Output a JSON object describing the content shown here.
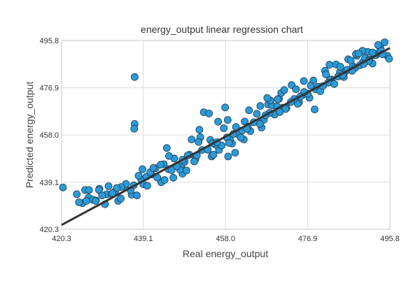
{
  "chart_data": {
    "type": "scatter",
    "title": "energy_output linear regression chart",
    "xlabel": "Real energy_output",
    "ylabel": "Predicted energy_output",
    "xlim": [
      420.3,
      495.8
    ],
    "ylim": [
      420.3,
      495.8
    ],
    "x_ticks": [
      "420.3",
      "439.1",
      "458.0",
      "476.9",
      "495.8"
    ],
    "y_ticks": [
      "420.3",
      "439.1",
      "458.0",
      "476.9",
      "495.8"
    ],
    "grid": true,
    "regression_line": {
      "x": [
        420.3,
        495.8
      ],
      "y": [
        422.0,
        492.8
      ]
    },
    "colors": {
      "marker_fill": "#2b9bd8",
      "marker_edge": "#1f3a52",
      "line": "#333333"
    },
    "series": [
      {
        "points_note_excluded": true,
        "x": [
          420.6,
          425.7,
          437.1,
          437.1,
          437.0,
          438.6,
          438.9,
          431.1,
          426.5,
          426.6,
          428.2,
          429.0,
          432.6,
          430.3,
          433.3,
          434.8,
          436.4,
          441.0,
          443.2,
          444.9,
          446.0,
          447.9,
          448.1,
          449.7,
          451.1,
          452.2,
          454.5,
          454.8,
          456.5,
          457.6,
          458.5,
          459.5,
          460.9,
          462.4,
          463.7,
          465.2,
          466.3,
          467.8,
          469.3,
          470.3,
          472.0,
          473.2,
          474.9,
          475.7,
          477.3,
          478.2,
          479.9,
          480.9,
          482.4,
          483.4,
          484.7,
          486.2,
          487.3,
          488.2,
          489.6,
          490.7,
          491.8,
          492.6,
          493.6,
          494.6,
          495.2,
          495.6,
          453.0,
          454.2,
          462.2,
          460.4,
          468.7,
          470.0,
          476.9,
          484.3,
          490.1,
          446.2,
          439.1,
          444.0,
          447.5,
          450.8,
          452.6,
          455.7,
          457.1,
          459.0,
          463.1,
          466.8,
          471.2,
          474.6,
          478.7,
          482.0,
          485.6,
          487.8,
          491.1,
          492.9,
          489.5,
          486.8,
          484.4,
          481.1,
          477.6,
          475.2,
          471.8,
          468.1,
          465.6,
          461.8,
          458.3,
          455.0,
          451.4,
          448.6,
          445.6,
          442.3,
          440.0,
          436.2,
          433.9,
          430.7,
          427.5,
          425.1,
          423.8,
          424.3,
          428.9,
          431.8,
          435.1,
          438.0,
          441.9,
          443.8,
          449.3,
          453.9,
          456.0,
          459.8,
          462.9,
          464.5,
          467.2,
          469.9,
          473.8,
          476.1,
          479.3,
          481.6,
          483.9,
          486.0,
          488.9,
          490.9,
          492.3,
          493.8,
          478.5,
          470.8,
          460.2,
          457.9,
          449.0,
          444.5,
          439.8,
          434.0,
          429.6,
          426.0,
          456.3,
          463.4,
          473.0,
          481.9,
          487.1,
          440.7,
          450.2,
          458.8,
          468.3,
          476.0,
          483.0,
          489.8,
          445.0,
          452.0,
          461.5,
          470.5,
          479.8,
          488.0,
          458.6,
          465.9,
          448.1,
          443.1,
          436.9,
          432.0,
          428.1,
          467.6,
          474.2,
          480.4,
          485.2,
          491.8,
          494.1,
          493.1,
          488.6,
          484.9,
          471.5,
          466.0,
          455.2,
          451.8,
          446.8,
          441.4,
          437.6,
          433.0
        ],
        "y": [
          437.0,
          436.0,
          462.4,
          481.2,
          460.5,
          440.2,
          444.3,
          437.5,
          433.0,
          436.0,
          431.8,
          436.5,
          435.4,
          430.3,
          431.6,
          437.2,
          434.1,
          442.2,
          439.1,
          444.3,
          440.9,
          446.0,
          442.5,
          450.1,
          448.4,
          457.1,
          456.0,
          449.4,
          452.0,
          460.7,
          464.0,
          454.6,
          458.3,
          463.4,
          459.6,
          466.5,
          461.0,
          470.2,
          466.2,
          472.5,
          468.8,
          478.0,
          471.1,
          474.0,
          472.9,
          479.8,
          476.8,
          483.7,
          480.2,
          486.2,
          482.5,
          488.3,
          485.5,
          489.7,
          487.2,
          491.3,
          486.6,
          490.0,
          493.0,
          495.1,
          489.7,
          488.5,
          467.1,
          466.6,
          456.2,
          461.2,
          469.8,
          472.3,
          474.5,
          483.2,
          488.8,
          448.6,
          438.3,
          440.0,
          444.2,
          447.4,
          452.0,
          454.1,
          453.8,
          456.4,
          461.3,
          464.1,
          468.9,
          470.5,
          476.3,
          480.0,
          483.5,
          484.8,
          488.2,
          490.6,
          491.7,
          487.8,
          485.3,
          482.2,
          477.7,
          473.4,
          468.4,
          466.8,
          463.2,
          459.8,
          457.0,
          454.7,
          449.9,
          447.3,
          443.9,
          441.0,
          437.7,
          435.9,
          432.6,
          434.3,
          432.1,
          430.7,
          434.3,
          431.1,
          436.0,
          434.3,
          438.4,
          441.7,
          444.7,
          446.3,
          449.8,
          452.1,
          455.1,
          458.4,
          460.5,
          463.1,
          465.9,
          469.4,
          472.4,
          475.2,
          477.3,
          478.9,
          481.4,
          484.1,
          485.9,
          487.6,
          489.9,
          491.7,
          468.2,
          474.8,
          450.9,
          469.0,
          443.8,
          452.8,
          441.3,
          437.2,
          433.8,
          431.6,
          463.3,
          467.9,
          471.2,
          486.1,
          483.7,
          443.1,
          456.2,
          454.8,
          471.8,
          479.6,
          478.4,
          486.4,
          449.6,
          460.1,
          457.0,
          467.2,
          475.5,
          490.4,
          449.4,
          462.4,
          448.1,
          446.1,
          437.9,
          434.7,
          431.6,
          472.8,
          476.3,
          477.6,
          481.2,
          491.0,
          490.3,
          494.0,
          490.6,
          482.0,
          476.0,
          469.6,
          450.1,
          455.2,
          445.6,
          444.8,
          433.8,
          436.8
        ]
      }
    ]
  }
}
